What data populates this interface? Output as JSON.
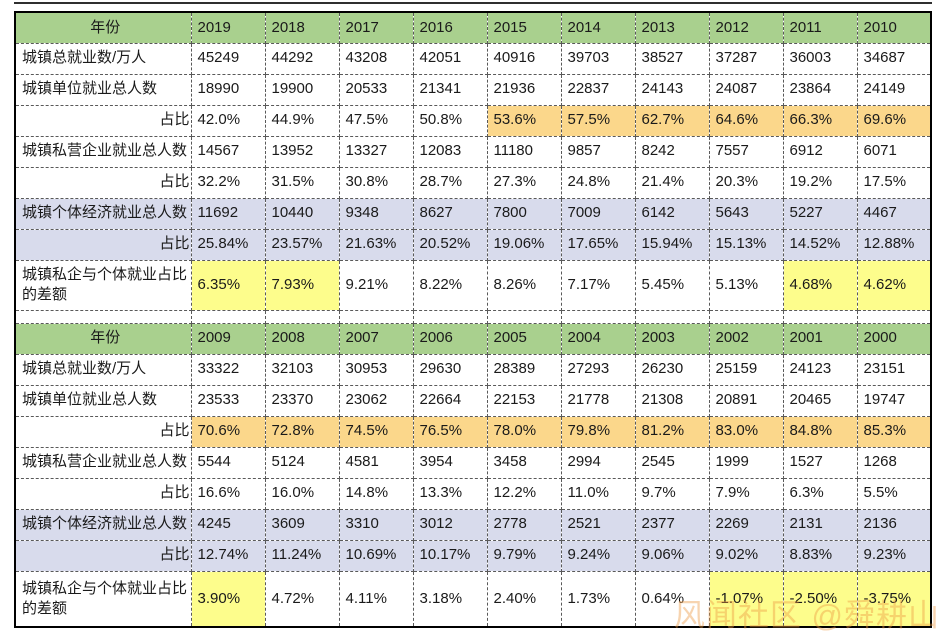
{
  "colors": {
    "green": "#A9D08E",
    "orange": "#FBD78B",
    "lavender": "#D8DBEC",
    "yellow": "#FDFD8C",
    "white": "#FFFFFF"
  },
  "watermark": {
    "text": "风闻社区 @舜耕山"
  },
  "table": {
    "sections": [
      {
        "header": {
          "label": "年份",
          "years": [
            "2019",
            "2018",
            "2017",
            "2016",
            "2015",
            "2014",
            "2013",
            "2012",
            "2011",
            "2010"
          ]
        },
        "rows": [
          {
            "label": "城镇总就业数/万人",
            "align": "left",
            "label_bg": "white",
            "bg": "white",
            "values": [
              "45249",
              "44292",
              "43208",
              "42051",
              "40916",
              "39703",
              "38527",
              "37287",
              "36003",
              "34687"
            ]
          },
          {
            "label": "城镇单位就业总人数",
            "align": "left",
            "label_bg": "white",
            "bg": "white",
            "values": [
              "18990",
              "19900",
              "20533",
              "21341",
              "21936",
              "22837",
              "24143",
              "24087",
              "23864",
              "24149"
            ]
          },
          {
            "label": "占比",
            "align": "right",
            "label_bg": "white",
            "cell_bgs": [
              "white",
              "white",
              "white",
              "white",
              "orange",
              "orange",
              "orange",
              "orange",
              "orange",
              "orange"
            ],
            "values": [
              "42.0%",
              "44.9%",
              "47.5%",
              "50.8%",
              "53.6%",
              "57.5%",
              "62.7%",
              "64.6%",
              "66.3%",
              "69.6%"
            ]
          },
          {
            "label": "城镇私营企业就业总人数",
            "align": "left",
            "label_bg": "white",
            "bg": "white",
            "values": [
              "14567",
              "13952",
              "13327",
              "12083",
              "11180",
              "9857",
              "8242",
              "7557",
              "6912",
              "6071"
            ]
          },
          {
            "label": "占比",
            "align": "right",
            "label_bg": "white",
            "bg": "white",
            "values": [
              "32.2%",
              "31.5%",
              "30.8%",
              "28.7%",
              "27.3%",
              "24.8%",
              "21.4%",
              "20.3%",
              "19.2%",
              "17.5%"
            ]
          },
          {
            "label": "城镇个体经济就业总人数",
            "align": "left",
            "label_bg": "lavender",
            "bg": "lavender",
            "values": [
              "11692",
              "10440",
              "9348",
              "8627",
              "7800",
              "7009",
              "6142",
              "5643",
              "5227",
              "4467"
            ]
          },
          {
            "label": "占比",
            "align": "right",
            "label_bg": "lavender",
            "bg": "lavender",
            "values": [
              "25.84%",
              "23.57%",
              "21.63%",
              "20.52%",
              "19.06%",
              "17.65%",
              "15.94%",
              "15.13%",
              "14.52%",
              "12.88%"
            ]
          },
          {
            "label": "城镇私企与个体就业占比的差额",
            "align": "left",
            "label_bg": "white",
            "tall": true,
            "cell_bgs": [
              "yellow",
              "yellow",
              "white",
              "white",
              "white",
              "white",
              "white",
              "white",
              "yellow",
              "yellow"
            ],
            "values": [
              "6.35%",
              "7.93%",
              "9.21%",
              "8.22%",
              "8.26%",
              "7.17%",
              "5.45%",
              "5.13%",
              "4.68%",
              "4.62%"
            ]
          }
        ]
      },
      {
        "header": {
          "label": "年份",
          "years": [
            "2009",
            "2008",
            "2007",
            "2006",
            "2005",
            "2004",
            "2003",
            "2002",
            "2001",
            "2000"
          ]
        },
        "rows": [
          {
            "label": "城镇总就业数/万人",
            "align": "left",
            "label_bg": "white",
            "bg": "white",
            "values": [
              "33322",
              "32103",
              "30953",
              "29630",
              "28389",
              "27293",
              "26230",
              "25159",
              "24123",
              "23151"
            ]
          },
          {
            "label": "城镇单位就业总人数",
            "align": "left",
            "label_bg": "white",
            "bg": "white",
            "values": [
              "23533",
              "23370",
              "23062",
              "22664",
              "22153",
              "21778",
              "21308",
              "20891",
              "20465",
              "19747"
            ]
          },
          {
            "label": "占比",
            "align": "right",
            "label_bg": "white",
            "bg": "orange",
            "values": [
              "70.6%",
              "72.8%",
              "74.5%",
              "76.5%",
              "78.0%",
              "79.8%",
              "81.2%",
              "83.0%",
              "84.8%",
              "85.3%"
            ]
          },
          {
            "label": "城镇私营企业就业总人数",
            "align": "left",
            "label_bg": "white",
            "bg": "white",
            "values": [
              "5544",
              "5124",
              "4581",
              "3954",
              "3458",
              "2994",
              "2545",
              "1999",
              "1527",
              "1268"
            ]
          },
          {
            "label": "占比",
            "align": "right",
            "label_bg": "white",
            "bg": "white",
            "values": [
              "16.6%",
              "16.0%",
              "14.8%",
              "13.3%",
              "12.2%",
              "11.0%",
              "9.7%",
              "7.9%",
              "6.3%",
              "5.5%"
            ]
          },
          {
            "label": "城镇个体经济就业总人数",
            "align": "left",
            "label_bg": "lavender",
            "bg": "lavender",
            "values": [
              "4245",
              "3609",
              "3310",
              "3012",
              "2778",
              "2521",
              "2377",
              "2269",
              "2131",
              "2136"
            ]
          },
          {
            "label": "占比",
            "align": "right",
            "label_bg": "lavender",
            "bg": "lavender",
            "values": [
              "12.74%",
              "11.24%",
              "10.69%",
              "10.17%",
              "9.79%",
              "9.24%",
              "9.06%",
              "9.02%",
              "8.83%",
              "9.23%"
            ]
          },
          {
            "label": "城镇私企与个体就业占比的差额",
            "align": "left",
            "label_bg": "white",
            "tall": true,
            "cell_bgs": [
              "yellow",
              "white",
              "white",
              "white",
              "white",
              "white",
              "white",
              "yellow",
              "yellow",
              "yellow"
            ],
            "values": [
              "3.90%",
              "4.72%",
              "4.11%",
              "3.18%",
              "2.40%",
              "1.73%",
              "0.64%",
              "-1.07%",
              "-2.50%",
              "-3.75%"
            ]
          }
        ]
      }
    ]
  }
}
